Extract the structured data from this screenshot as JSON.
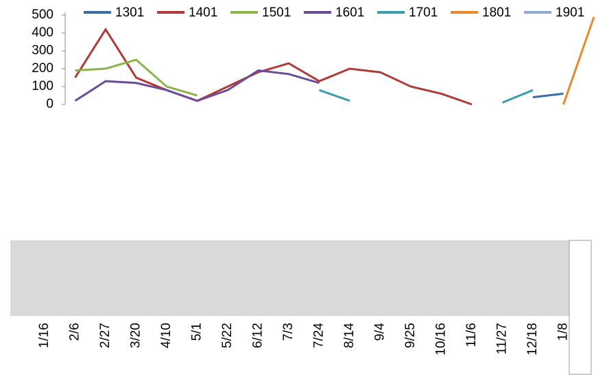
{
  "chart_data": {
    "type": "line",
    "categories": [
      "1/16",
      "2/6",
      "2/27",
      "3/20",
      "4/10",
      "5/1",
      "5/22",
      "6/12",
      "7/3",
      "7/24",
      "8/14",
      "9/4",
      "9/25",
      "10/16",
      "11/6",
      "11/27",
      "12/18",
      "1/8",
      null
    ],
    "series": [
      {
        "name": "1301",
        "color": "#3b6ea5",
        "values": [
          null,
          null,
          null,
          null,
          null,
          null,
          null,
          null,
          null,
          null,
          null,
          null,
          null,
          null,
          null,
          null,
          40,
          60,
          null
        ]
      },
      {
        "name": "1401",
        "color": "#b03a36",
        "values": [
          null,
          150,
          420,
          150,
          80,
          20,
          100,
          180,
          230,
          130,
          200,
          180,
          100,
          60,
          0,
          null,
          null,
          null,
          null
        ]
      },
      {
        "name": "1501",
        "color": "#8db34b",
        "values": [
          null,
          190,
          200,
          250,
          100,
          50,
          null,
          null,
          null,
          null,
          null,
          null,
          null,
          null,
          null,
          null,
          null,
          null,
          null
        ]
      },
      {
        "name": "1601",
        "color": "#6b4c9a",
        "values": [
          null,
          20,
          130,
          120,
          80,
          20,
          80,
          190,
          170,
          120,
          null,
          null,
          null,
          null,
          null,
          null,
          null,
          null,
          null
        ]
      },
      {
        "name": "1701",
        "color": "#3a9cb4",
        "values": [
          null,
          null,
          null,
          null,
          null,
          null,
          null,
          null,
          null,
          80,
          20,
          null,
          null,
          null,
          null,
          10,
          80,
          null,
          null
        ]
      },
      {
        "name": "1801",
        "color": "#e8892c",
        "values": [
          null,
          null,
          null,
          null,
          null,
          null,
          null,
          null,
          null,
          null,
          null,
          null,
          null,
          null,
          null,
          null,
          null,
          0,
          490
        ]
      },
      {
        "name": "1901",
        "color": "#8fa8d8",
        "values": [
          null,
          null,
          null,
          null,
          null,
          null,
          null,
          null,
          null,
          null,
          null,
          null,
          null,
          null,
          null,
          null,
          null,
          null,
          null
        ]
      }
    ],
    "ylim": [
      0,
      500
    ],
    "yticks": [
      0,
      100,
      200,
      300,
      400,
      500
    ]
  }
}
